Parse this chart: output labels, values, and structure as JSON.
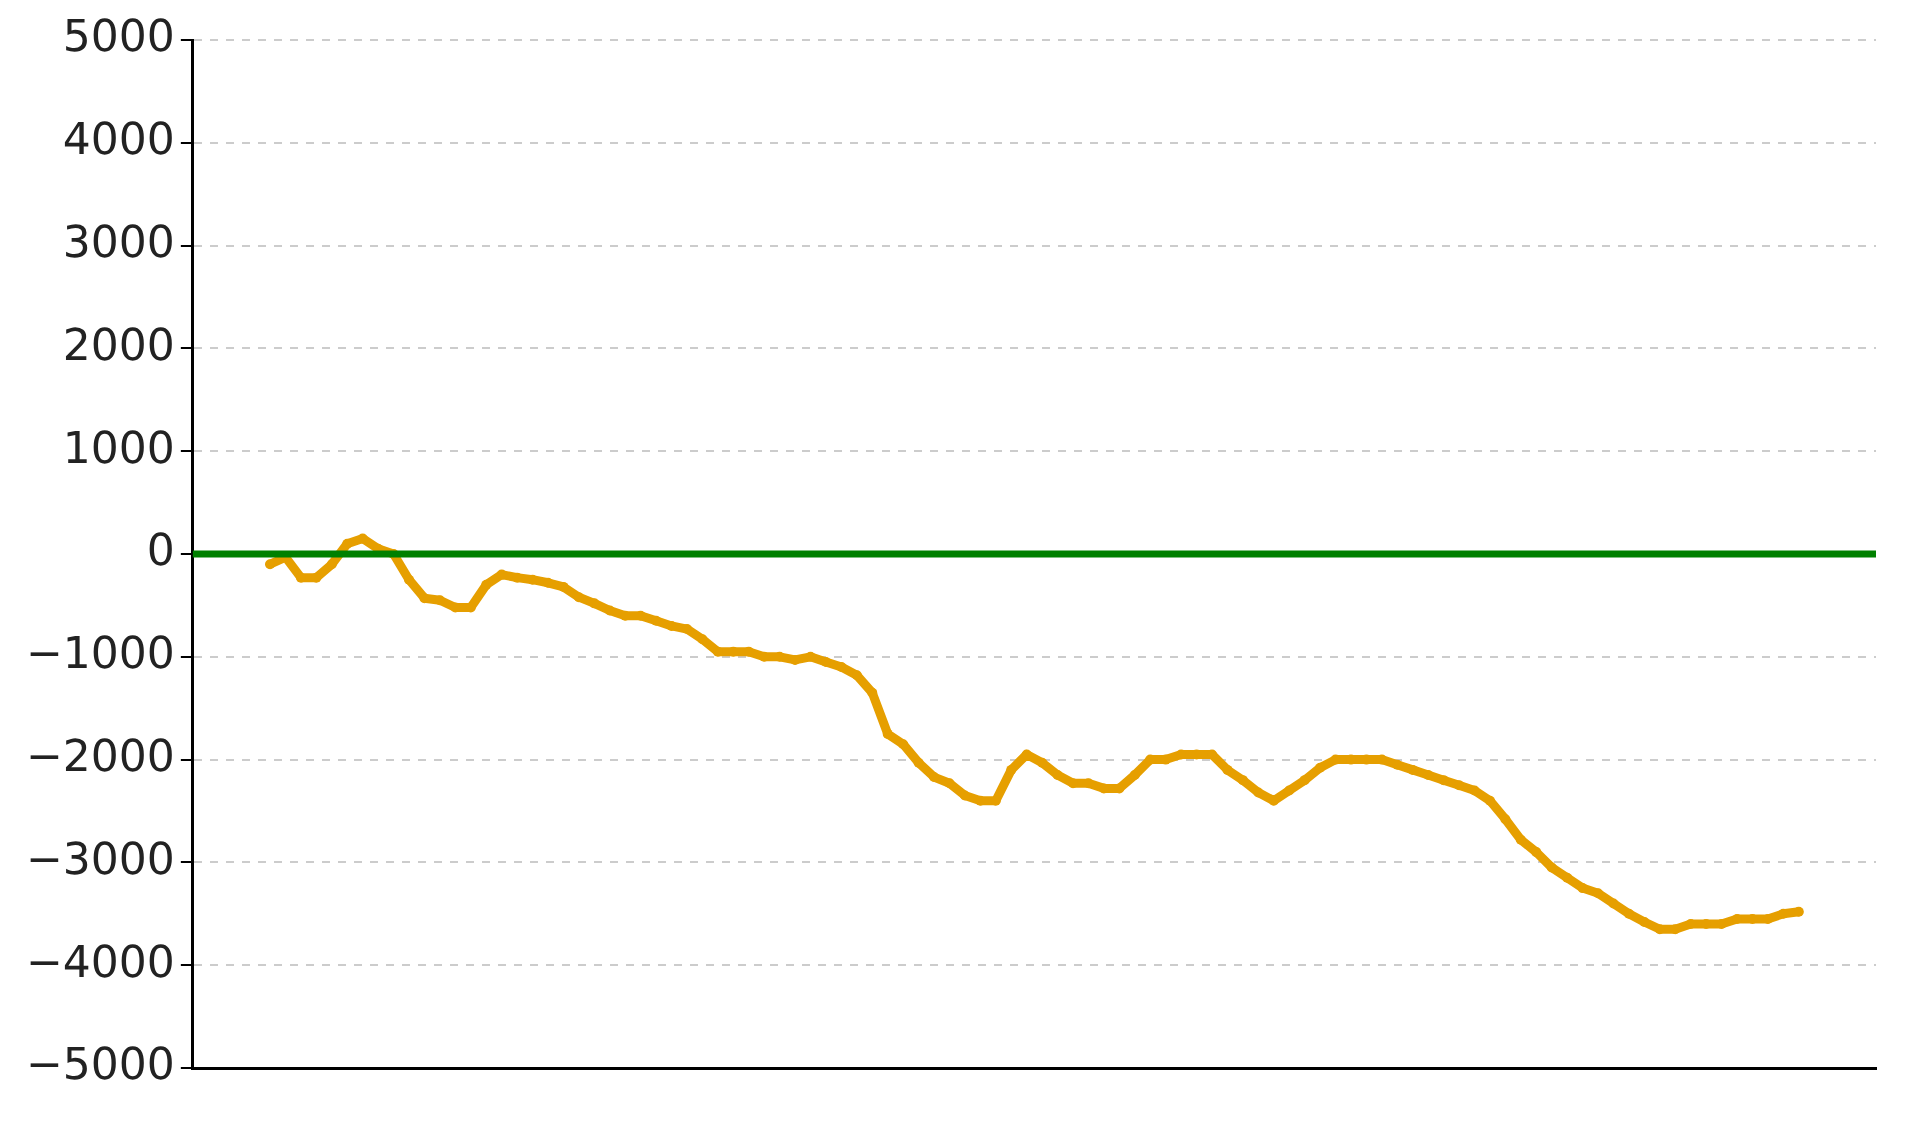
{
  "chart_data": {
    "type": "line",
    "categories": [
      null,
      null,
      null,
      null,
      null,
      null,
      null,
      null,
      null,
      null,
      null,
      null,
      null,
      null,
      null,
      null,
      null,
      null,
      null,
      null,
      null,
      null,
      null,
      null,
      null,
      null,
      null,
      null,
      null,
      null,
      null,
      null,
      null,
      null,
      null,
      null,
      null,
      null,
      null,
      null,
      null,
      null,
      null,
      null,
      null,
      null,
      null,
      null,
      null,
      null,
      null,
      null,
      null,
      null,
      null,
      null,
      null,
      null,
      null,
      null,
      null,
      null,
      null,
      null,
      null,
      null,
      null,
      null,
      null,
      null,
      null,
      null,
      null,
      null,
      null,
      null,
      null,
      null,
      null,
      null,
      null,
      null,
      null,
      null,
      null,
      null,
      null,
      null,
      null,
      null,
      null,
      null,
      null,
      null,
      null,
      null,
      null,
      null,
      null,
      null,
      null,
      null,
      null,
      null,
      null,
      null,
      null,
      null,
      null,
      null
    ],
    "series": [
      {
        "color": "#e69f00",
        "values": [
          null,
          null,
          null,
          null,
          null,
          -100,
          -30,
          -230,
          -230,
          -100,
          100,
          150,
          50,
          0,
          -250,
          -430,
          -450,
          -520,
          -520,
          -300,
          -200,
          -230,
          -250,
          -280,
          -320,
          -420,
          -480,
          -550,
          -600,
          -600,
          -650,
          -700,
          -730,
          -830,
          -950,
          -950,
          -950,
          -1000,
          -1000,
          -1030,
          -1000,
          -1050,
          -1100,
          -1180,
          -1350,
          -1750,
          -1850,
          -2030,
          -2170,
          -2230,
          -2350,
          -2400,
          -2400,
          -2100,
          -1950,
          -2030,
          -2150,
          -2230,
          -2230,
          -2280,
          -2280,
          -2150,
          -2000,
          -2000,
          -1950,
          -1950,
          -1950,
          -2100,
          -2200,
          -2320,
          -2400,
          -2300,
          -2200,
          -2080,
          -2000,
          -2000,
          -2000,
          -2000,
          -2050,
          -2100,
          -2150,
          -2200,
          -2250,
          -2300,
          -2400,
          -2580,
          -2780,
          -2900,
          -3050,
          -3150,
          -3250,
          -3300,
          -3400,
          -3500,
          -3580,
          -3650,
          -3650,
          -3600,
          -3600,
          -3600,
          -3550,
          -3550,
          -3550,
          -3500,
          -3480,
          null,
          null,
          null,
          null,
          null
        ]
      }
    ],
    "ylim": [
      -5000,
      5000
    ],
    "yticks": [
      -5000,
      -4000,
      -3000,
      -2000,
      -1000,
      0,
      1000,
      2000,
      3000,
      4000,
      5000
    ],
    "grid": "y",
    "marker": "circle",
    "line_style": "solid",
    "legend": false,
    "tick_labels": "y",
    "ref_lines": [
      {
        "axis": "y",
        "value": 0,
        "color": "#008000"
      }
    ]
  }
}
